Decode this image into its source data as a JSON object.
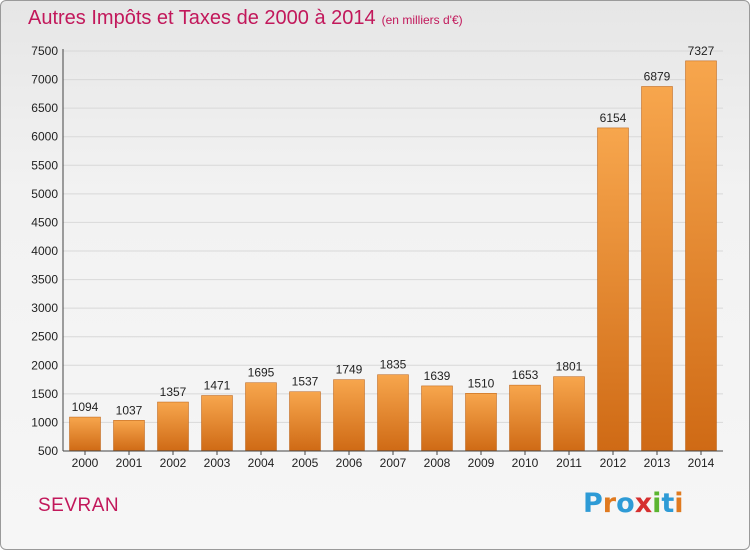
{
  "title": "Autres Impôts et Taxes de 2000 à 2014",
  "unit_label": "(en milliers d'€)",
  "location": "SEVRAN",
  "logo_text": "Proxiti",
  "logo_colors": [
    "#2e9bd6",
    "#e07a1f",
    "#2e9bd6",
    "#d62f2f",
    "#5bb531",
    "#2e9bd6",
    "#e07a1f"
  ],
  "colors": {
    "title": "#c2185b",
    "bar_light": "#f7a64d",
    "bar_dark": "#cf6a15",
    "grid": "#d8d8d8"
  },
  "chart_data": {
    "type": "bar",
    "title": "Autres Impôts et Taxes de 2000 à 2014",
    "xlabel": "",
    "ylabel": "",
    "categories": [
      "2000",
      "2001",
      "2002",
      "2003",
      "2004",
      "2005",
      "2006",
      "2007",
      "2008",
      "2009",
      "2010",
      "2011",
      "2012",
      "2013",
      "2014"
    ],
    "values": [
      1094,
      1037,
      1357,
      1471,
      1695,
      1537,
      1749,
      1835,
      1639,
      1510,
      1653,
      1801,
      6154,
      6879,
      7327
    ],
    "ylim": [
      500,
      7500
    ],
    "yticks": [
      500,
      1000,
      1500,
      2000,
      2500,
      3000,
      3500,
      4000,
      4500,
      5000,
      5500,
      6000,
      6500,
      7000,
      7500
    ],
    "grid": true
  }
}
